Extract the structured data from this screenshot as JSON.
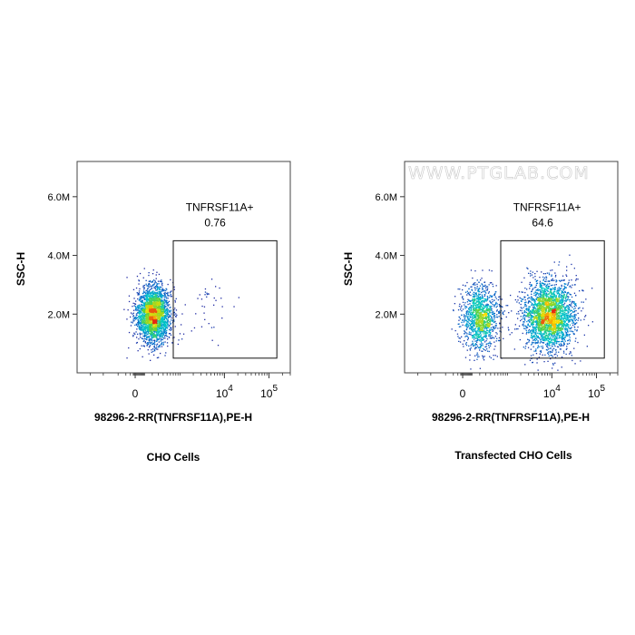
{
  "watermark": "WWW.PTGLAB.COM",
  "chart_data": [
    {
      "type": "scatter",
      "caption": "CHO Cells",
      "xlabel": "98296-2-RR(TNFRSF11A),PE-H",
      "ylabel": "SSC-H",
      "x_ticks": [
        {
          "value": 0,
          "label": "0",
          "sup": ""
        },
        {
          "value": 10000,
          "label": "10",
          "sup": "4"
        },
        {
          "value": 100000,
          "label": "10",
          "sup": "5"
        }
      ],
      "y_ticks": [
        {
          "value": 2000000,
          "label": "2.0M"
        },
        {
          "value": 4000000,
          "label": "4.0M"
        },
        {
          "value": 6000000,
          "label": "6.0M"
        }
      ],
      "xlim": [
        -2000,
        300000
      ],
      "ylim": [
        0,
        7200000
      ],
      "gate": {
        "name": "TNFRSF11A+",
        "percent": "0.76",
        "x_range": [
          700,
          150000
        ],
        "y_range": [
          500000,
          4500000
        ]
      },
      "populations": [
        {
          "x_center": 210,
          "x_spread": 170,
          "y_center": 2000000,
          "y_spread": 480000,
          "count": 2600
        },
        {
          "x_center": 4000,
          "x_spread": 3500,
          "y_center": 2100000,
          "y_spread": 550000,
          "count": 35
        }
      ]
    },
    {
      "type": "scatter",
      "caption": "Transfected CHO Cells",
      "xlabel": "98296-2-RR(TNFRSF11A),PE-H",
      "ylabel": "SSC-H",
      "x_ticks": [
        {
          "value": 0,
          "label": "0",
          "sup": ""
        },
        {
          "value": 10000,
          "label": "10",
          "sup": "4"
        },
        {
          "value": 100000,
          "label": "10",
          "sup": "5"
        }
      ],
      "y_ticks": [
        {
          "value": 2000000,
          "label": "2.0M"
        },
        {
          "value": 4000000,
          "label": "4.0M"
        },
        {
          "value": 6000000,
          "label": "6.0M"
        }
      ],
      "xlim": [
        -2000,
        300000
      ],
      "ylim": [
        0,
        7200000
      ],
      "gate": {
        "name": "TNFRSF11A+",
        "percent": "64.6",
        "x_range": [
          700,
          150000
        ],
        "y_range": [
          500000,
          4500000
        ]
      },
      "populations": [
        {
          "x_center": 200,
          "x_spread": 180,
          "y_center": 1900000,
          "y_spread": 550000,
          "count": 1300
        },
        {
          "x_center": 8500,
          "x_spread": 9000,
          "y_center": 1950000,
          "y_spread": 600000,
          "count": 2700
        }
      ]
    }
  ]
}
